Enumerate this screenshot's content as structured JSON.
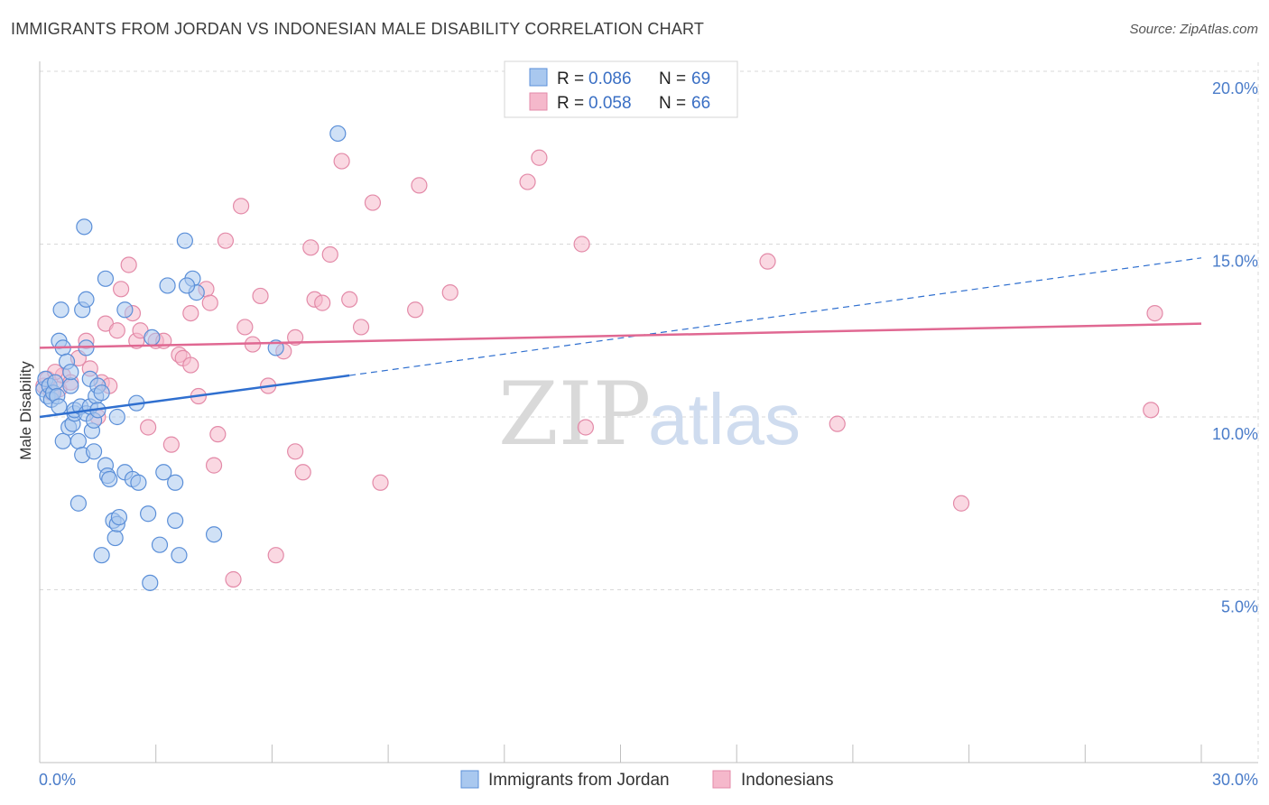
{
  "header": {
    "title": "IMMIGRANTS FROM JORDAN VS INDONESIAN MALE DISABILITY CORRELATION CHART",
    "source": "Source: ZipAtlas.com"
  },
  "watermark": {
    "zip": "ZIP",
    "atlas": "atlas"
  },
  "colors": {
    "jordan_fill": "#a9c8ef",
    "jordan_stroke": "#5b8fd8",
    "jordan_line": "#2f6fcf",
    "indo_fill": "#f5b8cb",
    "indo_stroke": "#e38aa8",
    "indo_line": "#e06892",
    "grid": "#d8d8d8",
    "tick_label": "#4a7cc9"
  },
  "legend": {
    "rows": [
      {
        "r_label": "R = ",
        "r_value": "0.086",
        "n_label": "N = ",
        "n_value": "69"
      },
      {
        "r_label": "R = ",
        "r_value": "0.058",
        "n_label": "N = ",
        "n_value": "66"
      }
    ]
  },
  "chart_data": {
    "type": "scatter",
    "title": "IMMIGRANTS FROM JORDAN VS INDONESIAN MALE DISABILITY CORRELATION CHART",
    "xlabel": "",
    "ylabel": "Male Disability",
    "xlim": [
      0,
      30
    ],
    "ylim": [
      0,
      20
    ],
    "x_tick_labels": [
      "0.0%",
      "30.0%"
    ],
    "y_ticks": [
      5,
      10,
      15,
      20
    ],
    "y_tick_labels": [
      "5.0%",
      "10.0%",
      "15.0%",
      "20.0%"
    ],
    "grid": true,
    "legend_position": "top-center",
    "series": [
      {
        "name": "Immigrants from Jordan",
        "trend": {
          "x": [
            0.0,
            8.0
          ],
          "y": [
            10.0,
            11.2
          ],
          "dashed_to": [
            30.0,
            14.6
          ]
        },
        "points": [
          [
            0.1,
            10.8
          ],
          [
            0.15,
            11.1
          ],
          [
            0.2,
            10.6
          ],
          [
            0.25,
            10.9
          ],
          [
            0.3,
            10.5
          ],
          [
            0.35,
            10.7
          ],
          [
            0.4,
            11.0
          ],
          [
            0.45,
            10.6
          ],
          [
            0.5,
            10.3
          ],
          [
            0.5,
            12.2
          ],
          [
            0.55,
            13.1
          ],
          [
            0.6,
            12.0
          ],
          [
            0.6,
            9.3
          ],
          [
            0.7,
            11.6
          ],
          [
            0.75,
            9.7
          ],
          [
            0.8,
            10.9
          ],
          [
            0.8,
            11.3
          ],
          [
            0.85,
            9.8
          ],
          [
            0.9,
            10.1
          ],
          [
            0.9,
            10.2
          ],
          [
            1.0,
            7.5
          ],
          [
            1.0,
            9.3
          ],
          [
            1.05,
            10.3
          ],
          [
            1.1,
            8.9
          ],
          [
            1.1,
            13.1
          ],
          [
            1.15,
            15.5
          ],
          [
            1.2,
            10.1
          ],
          [
            1.2,
            12.0
          ],
          [
            1.2,
            13.4
          ],
          [
            1.3,
            10.3
          ],
          [
            1.3,
            11.1
          ],
          [
            1.35,
            9.6
          ],
          [
            1.4,
            9.0
          ],
          [
            1.4,
            9.9
          ],
          [
            1.45,
            10.6
          ],
          [
            1.5,
            10.9
          ],
          [
            1.5,
            10.2
          ],
          [
            1.6,
            6.0
          ],
          [
            1.7,
            14.0
          ],
          [
            1.7,
            8.6
          ],
          [
            1.75,
            8.3
          ],
          [
            1.8,
            8.2
          ],
          [
            1.9,
            7.0
          ],
          [
            1.95,
            6.5
          ],
          [
            2.0,
            6.9
          ],
          [
            2.0,
            10.0
          ],
          [
            2.05,
            7.1
          ],
          [
            2.2,
            8.4
          ],
          [
            2.2,
            13.1
          ],
          [
            2.4,
            8.2
          ],
          [
            2.5,
            10.4
          ],
          [
            2.55,
            8.1
          ],
          [
            2.8,
            7.2
          ],
          [
            2.85,
            5.2
          ],
          [
            3.1,
            6.3
          ],
          [
            3.2,
            8.4
          ],
          [
            3.3,
            13.8
          ],
          [
            3.5,
            8.1
          ],
          [
            3.5,
            7.0
          ],
          [
            3.6,
            6.0
          ],
          [
            3.75,
            15.1
          ],
          [
            3.95,
            14.0
          ],
          [
            4.05,
            13.6
          ],
          [
            4.5,
            6.6
          ],
          [
            6.1,
            12.0
          ],
          [
            7.7,
            18.2
          ],
          [
            3.8,
            13.8
          ],
          [
            2.9,
            12.3
          ],
          [
            1.6,
            10.7
          ]
        ]
      },
      {
        "name": "Indonesians",
        "trend": {
          "x": [
            0.0,
            30.0
          ],
          "y": [
            12.0,
            12.7
          ]
        },
        "points": [
          [
            0.1,
            10.9
          ],
          [
            0.2,
            11.1
          ],
          [
            0.3,
            10.7
          ],
          [
            0.5,
            10.8
          ],
          [
            0.6,
            11.2
          ],
          [
            0.8,
            11.0
          ],
          [
            1.0,
            11.7
          ],
          [
            1.2,
            12.2
          ],
          [
            1.3,
            11.4
          ],
          [
            1.5,
            10.0
          ],
          [
            1.6,
            11.0
          ],
          [
            1.7,
            12.7
          ],
          [
            1.8,
            10.9
          ],
          [
            2.0,
            12.5
          ],
          [
            2.1,
            13.7
          ],
          [
            2.3,
            14.4
          ],
          [
            2.4,
            13.0
          ],
          [
            2.5,
            12.2
          ],
          [
            2.6,
            12.5
          ],
          [
            2.8,
            9.7
          ],
          [
            3.0,
            12.2
          ],
          [
            3.2,
            12.2
          ],
          [
            3.4,
            9.2
          ],
          [
            3.6,
            11.8
          ],
          [
            3.7,
            11.7
          ],
          [
            3.9,
            11.5
          ],
          [
            3.9,
            13.0
          ],
          [
            4.1,
            10.6
          ],
          [
            4.3,
            13.7
          ],
          [
            4.4,
            13.3
          ],
          [
            4.5,
            8.6
          ],
          [
            4.6,
            9.5
          ],
          [
            4.8,
            15.1
          ],
          [
            5.0,
            5.3
          ],
          [
            5.2,
            16.1
          ],
          [
            5.3,
            12.6
          ],
          [
            5.5,
            12.1
          ],
          [
            5.7,
            13.5
          ],
          [
            5.9,
            10.9
          ],
          [
            6.1,
            6.0
          ],
          [
            6.3,
            11.9
          ],
          [
            6.6,
            9.0
          ],
          [
            6.6,
            12.3
          ],
          [
            6.8,
            8.4
          ],
          [
            7.0,
            14.9
          ],
          [
            7.1,
            13.4
          ],
          [
            7.3,
            13.3
          ],
          [
            7.5,
            14.7
          ],
          [
            7.8,
            17.4
          ],
          [
            8.0,
            13.4
          ],
          [
            8.3,
            12.6
          ],
          [
            8.6,
            16.2
          ],
          [
            8.8,
            8.1
          ],
          [
            9.7,
            13.1
          ],
          [
            9.8,
            16.7
          ],
          [
            10.6,
            13.6
          ],
          [
            12.6,
            16.8
          ],
          [
            12.9,
            17.5
          ],
          [
            14.0,
            15.0
          ],
          [
            14.1,
            9.7
          ],
          [
            18.8,
            14.5
          ],
          [
            20.6,
            9.8
          ],
          [
            23.8,
            7.5
          ],
          [
            28.7,
            10.2
          ],
          [
            28.8,
            13.0
          ],
          [
            0.4,
            11.3
          ]
        ]
      }
    ]
  }
}
